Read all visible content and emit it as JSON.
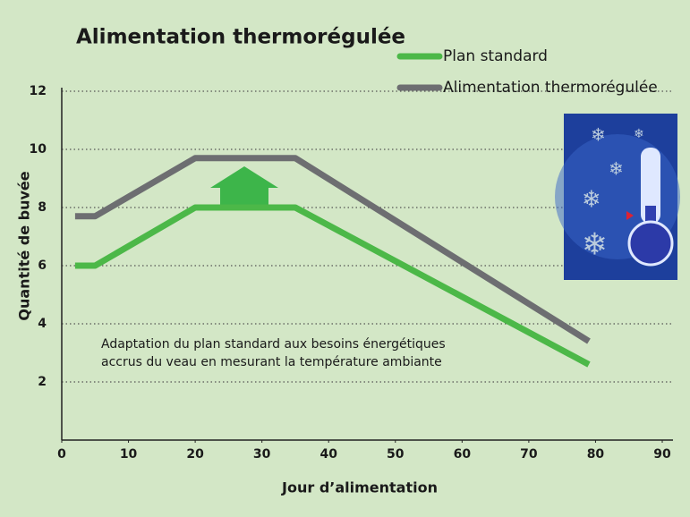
{
  "chart_data": {
    "type": "line",
    "title": "Alimentation thermorégulée",
    "xlabel": "Jour d’alimentation",
    "ylabel": "Quantité de buvée",
    "annotation": [
      "Adaptation du plan standard aux besoins énergétiques",
      "accrus du veau en mesurant la température ambiante"
    ],
    "xlim": [
      0,
      90
    ],
    "xticks": [
      0,
      10,
      20,
      30,
      40,
      50,
      60,
      70,
      80,
      90
    ],
    "ylim": [
      0,
      12
    ],
    "yticks": [
      2,
      4,
      6,
      8,
      10,
      12
    ],
    "grid": true,
    "legend": "top-right",
    "series": [
      {
        "name": "Plan standard",
        "color": "#4cb848",
        "x": [
          2,
          5,
          20,
          35,
          79
        ],
        "values": [
          6,
          6,
          8,
          8,
          2.6
        ]
      },
      {
        "name": "Alimentation thermorégulée",
        "color": "#6d6e71",
        "x": [
          2,
          5,
          20,
          35,
          79
        ],
        "values": [
          7.7,
          7.7,
          9.7,
          9.7,
          3.4
        ]
      }
    ]
  }
}
